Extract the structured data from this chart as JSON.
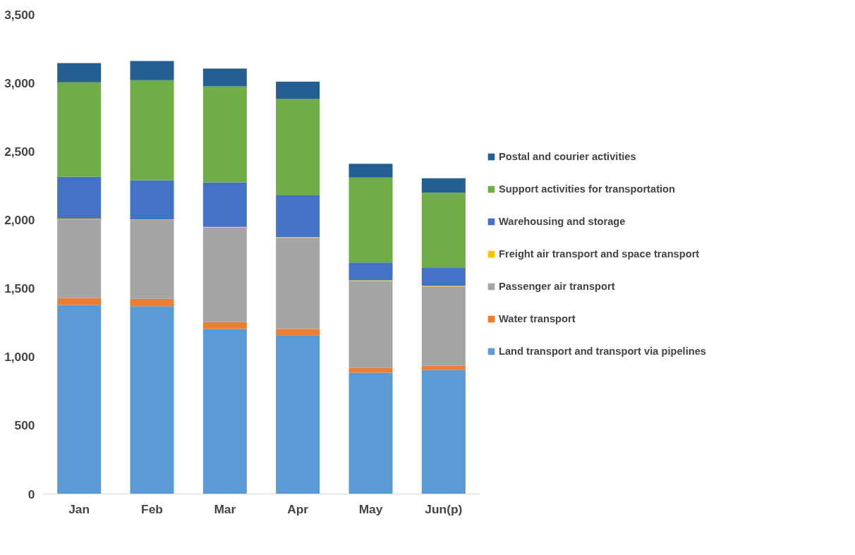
{
  "chart_data": {
    "type": "bar",
    "stacked": true,
    "categories": [
      "Jan",
      "Feb",
      "Mar",
      "Apr",
      "May",
      "Jun(p)"
    ],
    "series": [
      {
        "name": "Land transport and transport via pipelines",
        "color": "#5b9bd5",
        "values": [
          1380,
          1370,
          1205,
          1160,
          885,
          905
        ]
      },
      {
        "name": "Water transport",
        "color": "#ed7d31",
        "values": [
          50,
          55,
          50,
          45,
          35,
          30
        ]
      },
      {
        "name": "Passenger air transport",
        "color": "#a5a5a5",
        "values": [
          575,
          575,
          690,
          665,
          635,
          580
        ]
      },
      {
        "name": "Freight air transport and space transport",
        "color": "#ffc000",
        "values": [
          5,
          5,
          5,
          5,
          5,
          5
        ]
      },
      {
        "name": "Warehousing and storage",
        "color": "#4472c4",
        "values": [
          305,
          285,
          325,
          305,
          130,
          130
        ]
      },
      {
        "name": "Support activities for transportation",
        "color": "#70ad47",
        "values": [
          690,
          730,
          700,
          705,
          620,
          550
        ]
      },
      {
        "name": "Postal and courier activities",
        "color": "#255e91",
        "values": [
          140,
          140,
          130,
          125,
          100,
          105
        ]
      }
    ],
    "ylim": [
      0,
      3500
    ],
    "yticks": [
      {
        "value": 0,
        "label": "0"
      },
      {
        "value": 500,
        "label": "500"
      },
      {
        "value": 1000,
        "label": "1,000"
      },
      {
        "value": 1500,
        "label": "1,500"
      },
      {
        "value": 2000,
        "label": "2,000"
      },
      {
        "value": 2500,
        "label": "2,500"
      },
      {
        "value": 3000,
        "label": "3,000"
      },
      {
        "value": 3500,
        "label": "3,500"
      }
    ],
    "grid": false,
    "legend": "right"
  }
}
